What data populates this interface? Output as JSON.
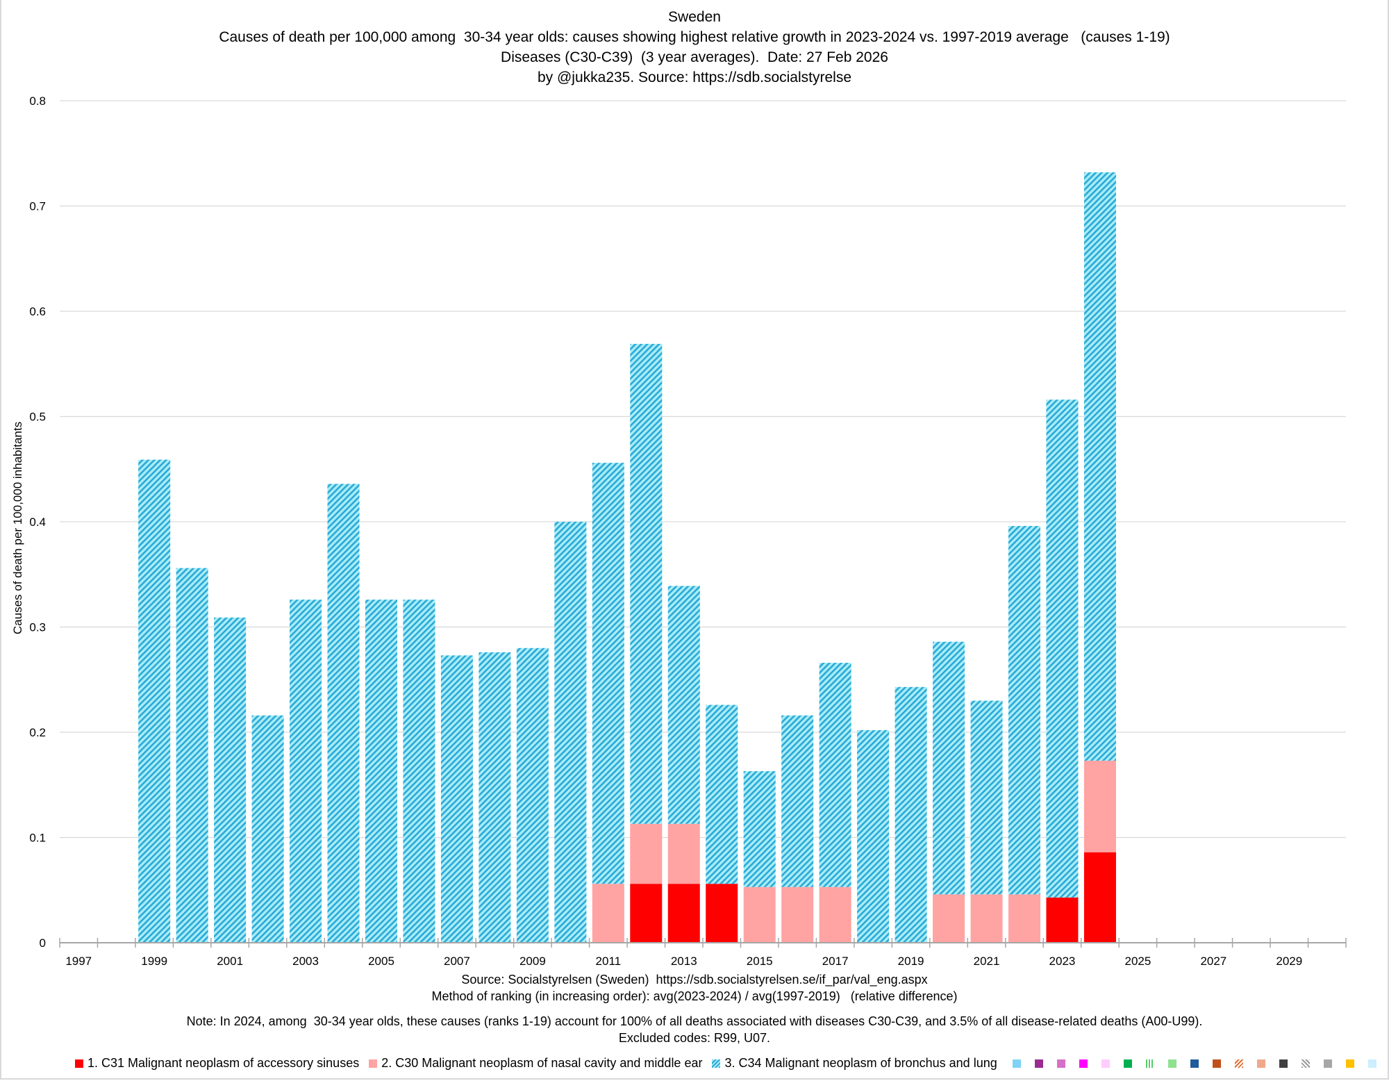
{
  "titles": {
    "line1": "Sweden",
    "line2": "Causes of death per 100,000 among  30-34 year olds: causes showing highest relative growth in 2023-2024 vs. 1997-2019 average   (causes 1-19)",
    "line3": "Diseases (C30-C39)  (3 year averages).  Date: 27 Feb 2026",
    "line4": "by @jukka235. Source: https://sdb.socialstyrelse"
  },
  "footer": {
    "source": "Source: Socialstyrelsen (Sweden)  https://sdb.socialstyrelsen.se/if_par/val_eng.aspx",
    "method": "Method of ranking (in increasing order): avg(2023-2024) / avg(1997-2019)   (relative difference)",
    "note": "Note: In 2024, among  30-34 year olds, these causes (ranks 1-19) account for 100% of all deaths associated with diseases C30-C39, and 3.5% of all disease-related deaths (A00-U99).",
    "excluded": "Excluded codes: R99, U07."
  },
  "chart_data": {
    "type": "bar",
    "stacked": true,
    "title": "Sweden",
    "xlabel": "",
    "ylabel": "Causes of death per 100,000 inhabitants",
    "ylim": [
      0,
      0.8
    ],
    "yticks": [
      "0",
      "0.1",
      "0.2",
      "0.3",
      "0.4",
      "0.5",
      "0.6",
      "0.7",
      "0.8"
    ],
    "grid": true,
    "legend_position": "bottom",
    "categories": [
      1997,
      1998,
      1999,
      2000,
      2001,
      2002,
      2003,
      2004,
      2005,
      2006,
      2007,
      2008,
      2009,
      2010,
      2011,
      2012,
      2013,
      2014,
      2015,
      2016,
      2017,
      2018,
      2019,
      2020,
      2021,
      2022,
      2023,
      2024,
      2025,
      2026,
      2027,
      2028,
      2029,
      2030
    ],
    "xtick_labels": [
      "1997",
      "1999",
      "2001",
      "2003",
      "2005",
      "2007",
      "2009",
      "2011",
      "2013",
      "2015",
      "2017",
      "2019",
      "2021",
      "2023",
      "2025",
      "2027",
      "2029"
    ],
    "series": [
      {
        "name": "1. C31 Malignant neoplasm of accessory sinuses",
        "color": "#ff0000",
        "pattern": "solid",
        "values": [
          null,
          null,
          0,
          0,
          0,
          0,
          0,
          0,
          0,
          0,
          0,
          0,
          0,
          0,
          0,
          0.056,
          0.056,
          0.056,
          0,
          0,
          0,
          0,
          0,
          0,
          0,
          0,
          0.043,
          0.086,
          null,
          null,
          null,
          null,
          null,
          null
        ]
      },
      {
        "name": "2. C30 Malignant neoplasm of nasal cavity and middle ear",
        "color": "#ffa3a3",
        "pattern": "solid",
        "values": [
          null,
          null,
          0,
          0,
          0,
          0,
          0,
          0,
          0,
          0,
          0,
          0,
          0,
          0,
          0.056,
          0.057,
          0.057,
          0,
          0.053,
          0.053,
          0.053,
          0,
          0,
          0.046,
          0.046,
          0.046,
          0,
          0.087,
          null,
          null,
          null,
          null,
          null,
          null
        ]
      },
      {
        "name": "3. C34 Malignant neoplasm of bronchus and lung",
        "color": "#2aa9d6",
        "background": "#a8ecf7",
        "pattern": "diagonal-hatch",
        "values": [
          null,
          null,
          0.459,
          0.356,
          0.309,
          0.216,
          0.326,
          0.436,
          0.326,
          0.326,
          0.273,
          0.276,
          0.28,
          0.4,
          0.4,
          0.456,
          0.226,
          0.17,
          0.11,
          0.163,
          0.213,
          0.202,
          0.243,
          0.24,
          0.184,
          0.35,
          0.473,
          0.559,
          null,
          null,
          null,
          null,
          null,
          null
        ]
      }
    ],
    "extra_legend_swatches": [
      {
        "color": "#7fd3f5",
        "pattern": "solid"
      },
      {
        "color": "#9b2c8f",
        "pattern": "solid"
      },
      {
        "color": "#d66fc8",
        "pattern": "solid"
      },
      {
        "color": "#ff00ff",
        "pattern": "solid"
      },
      {
        "color": "#ffccff",
        "pattern": "solid"
      },
      {
        "color": "#00b050",
        "pattern": "solid"
      },
      {
        "color": "#55cc66",
        "pattern": "vertical-lines"
      },
      {
        "color": "#8fe08f",
        "pattern": "solid"
      },
      {
        "color": "#1f5c99",
        "pattern": "solid"
      },
      {
        "color": "#c0501a",
        "pattern": "solid"
      },
      {
        "color": "#e07030",
        "pattern": "diagonal-hatch"
      },
      {
        "color": "#f0a888",
        "pattern": "solid"
      },
      {
        "color": "#404040",
        "pattern": "solid"
      },
      {
        "color": "#999999",
        "pattern": "diagonal-hatch-reverse"
      },
      {
        "color": "#a6a6a6",
        "pattern": "solid"
      },
      {
        "color": "#ffc000",
        "pattern": "solid"
      },
      {
        "color": "#cceeff",
        "pattern": "solid"
      }
    ]
  }
}
